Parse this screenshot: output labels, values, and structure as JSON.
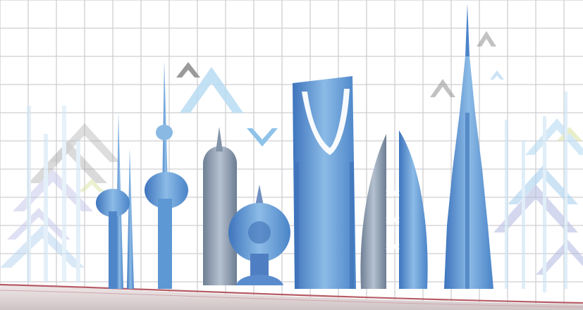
{
  "scene": {
    "subject": "skyline-illustration",
    "colors": {
      "background": "#ffffff",
      "grid": "#c9c9cc",
      "tower_blue": "#5d97d4",
      "tower_deep": "#3b6fb6",
      "tower_light": "#a9d1f0",
      "tower_gray": "#7f8fa3",
      "arrow_gray": "#9a9a9a",
      "arrow_light": "#b9dcf2",
      "arrow_lavender": "#b9bfe3",
      "arrow_green": "#d9e3a6",
      "curve": "#b55c66",
      "floor": "#d9cfd0"
    },
    "icons": [
      "up-arrow-chevron",
      "tv-tower",
      "twin-spire",
      "domed-tower",
      "arch-tower",
      "sail-towers",
      "supertall-tower"
    ]
  }
}
